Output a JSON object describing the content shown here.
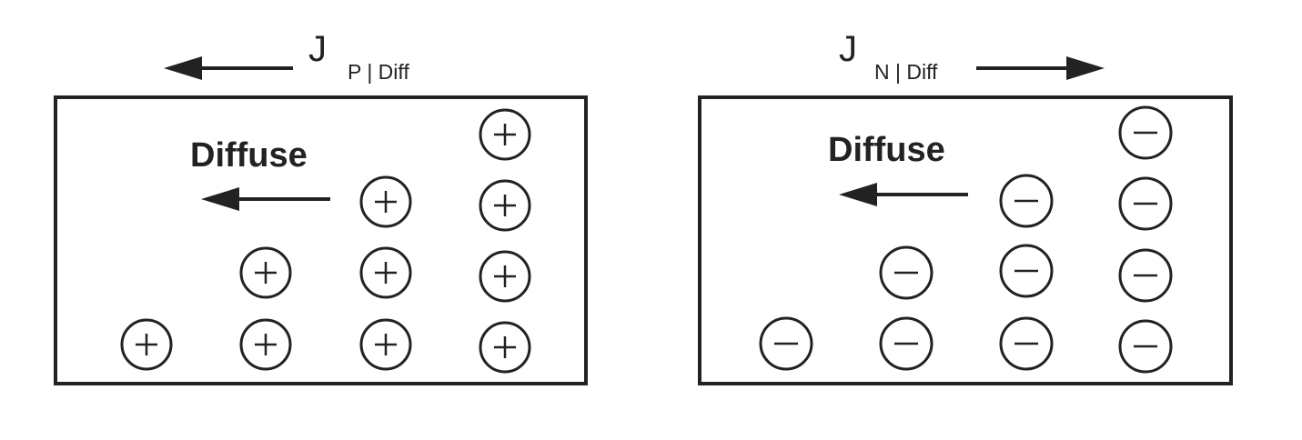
{
  "colors": {
    "ink": "#222222",
    "background": "#ffffff"
  },
  "panels": [
    {
      "carrier": "holes",
      "flux_label": {
        "symbol": "J",
        "subscript": "P | Diff"
      },
      "flux_direction": "left",
      "diffuse_label": "Diffuse",
      "diffuse_direction": "left",
      "particle_sign": "+",
      "column_counts": [
        1,
        2,
        3,
        4
      ]
    },
    {
      "carrier": "electrons",
      "flux_label": {
        "symbol": "J",
        "subscript": "N | Diff"
      },
      "flux_direction": "right",
      "diffuse_label": "Diffuse",
      "diffuse_direction": "left",
      "particle_sign": "-",
      "column_counts": [
        1,
        2,
        3,
        4
      ]
    }
  ]
}
